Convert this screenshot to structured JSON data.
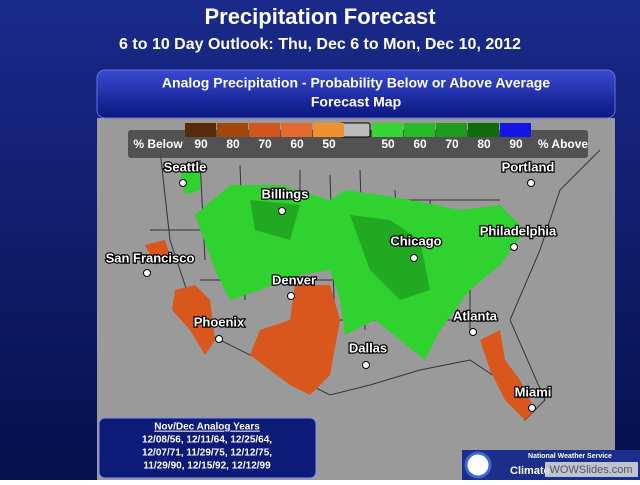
{
  "header": {
    "title": "Precipitation Forecast",
    "subtitle": "6 to 10 Day Outlook: Thu, Dec 6 to Mon, Dec 10, 2012"
  },
  "panel": {
    "title_lines": [
      "Analog Precipitation -  Probability Below or Above Average",
      "Forecast Map"
    ]
  },
  "legend": {
    "below_label": "% Below",
    "above_label": "% Above",
    "below": [
      {
        "value": 90,
        "color": "#5a2a0c"
      },
      {
        "value": 80,
        "color": "#a0480e"
      },
      {
        "value": 70,
        "color": "#d2561c"
      },
      {
        "value": 60,
        "color": "#e26a2c"
      },
      {
        "value": 50,
        "color": "#f0902e"
      }
    ],
    "above": [
      {
        "value": 50,
        "color": "#33d633"
      },
      {
        "value": 60,
        "color": "#24bb24"
      },
      {
        "value": 70,
        "color": "#1c9c1c"
      },
      {
        "value": 80,
        "color": "#106a10"
      },
      {
        "value": 90,
        "color": "#1414e6"
      }
    ]
  },
  "cities": [
    {
      "name": "Seattle"
    },
    {
      "name": "Billings"
    },
    {
      "name": "Portland"
    },
    {
      "name": "San Francisco"
    },
    {
      "name": "Chicago"
    },
    {
      "name": "Philadelphia"
    },
    {
      "name": "Denver"
    },
    {
      "name": "Phoenix"
    },
    {
      "name": "Atlanta"
    },
    {
      "name": "Dallas"
    },
    {
      "name": "Miami"
    }
  ],
  "analog": {
    "title": "Nov/Dec Analog Years",
    "lines": [
      "12/08/56, 12/11/64, 12/25/64,",
      "12/07/71, 11/29/75, 12/12/75,",
      "11/29/90, 12/15/92, 12/12/99"
    ]
  },
  "footer": {
    "agency": "National Weather Service",
    "program": "Climate",
    "watermark": "WOWSlides.com"
  }
}
